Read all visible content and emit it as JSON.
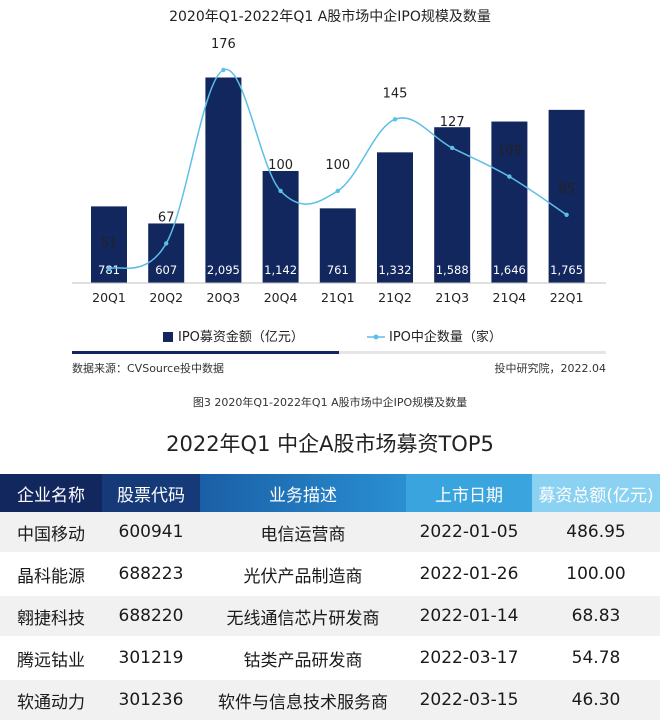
{
  "chart_data": {
    "type": "bar",
    "title": "2020年Q1-2022年Q1 A股市场中企IPO规模及数量",
    "categories": [
      "20Q1",
      "20Q2",
      "20Q3",
      "20Q4",
      "21Q1",
      "21Q2",
      "21Q3",
      "21Q4",
      "22Q1"
    ],
    "series": [
      {
        "name": "IPO募资金额（亿元）",
        "type": "bar",
        "color": "#13275f",
        "values": [
          781,
          607,
          2095,
          1142,
          761,
          1332,
          1588,
          1646,
          1765
        ],
        "labels": [
          "781",
          "607",
          "2,095",
          "1,142",
          "761",
          "1,332",
          "1,588",
          "1,646",
          "1,765"
        ]
      },
      {
        "name": "IPO中企数量（家）",
        "type": "line",
        "color": "#5cbfe8",
        "values": [
          51,
          67,
          176,
          100,
          100,
          145,
          127,
          109,
          85
        ],
        "labels": [
          "51",
          "67",
          "176",
          "100",
          "100",
          "145",
          "127",
          "109",
          "85"
        ]
      }
    ],
    "bar_ylim": [
      0,
      2100
    ],
    "line_ylim": [
      0,
      200
    ],
    "legend_position": "bottom",
    "grid": false
  },
  "source": "数据来源：CVSource投中数据",
  "brand": "投中研究院，2022.04",
  "caption": "图3 2020年Q1-2022年Q1 A股市场中企IPO规模及数量",
  "table": {
    "title": "2022年Q1 中企A股市场募资TOP5",
    "headers": [
      "企业名称",
      "股票代码",
      "业务描述",
      "上市日期",
      "募资总额(亿元)"
    ],
    "rows": [
      [
        "中国移动",
        "600941",
        "电信运营商",
        "2022-01-05",
        "486.95"
      ],
      [
        "晶科能源",
        "688223",
        "光伏产品制造商",
        "2022-01-26",
        "100.00"
      ],
      [
        "翱捷科技",
        "688220",
        "无线通信芯片研发商",
        "2022-01-14",
        "68.83"
      ],
      [
        "腾远钴业",
        "301219",
        "钴类产品研发商",
        "2022-03-17",
        "54.78"
      ],
      [
        "软通动力",
        "301236",
        "软件与信息技术服务商",
        "2022-03-15",
        "46.30"
      ]
    ]
  }
}
